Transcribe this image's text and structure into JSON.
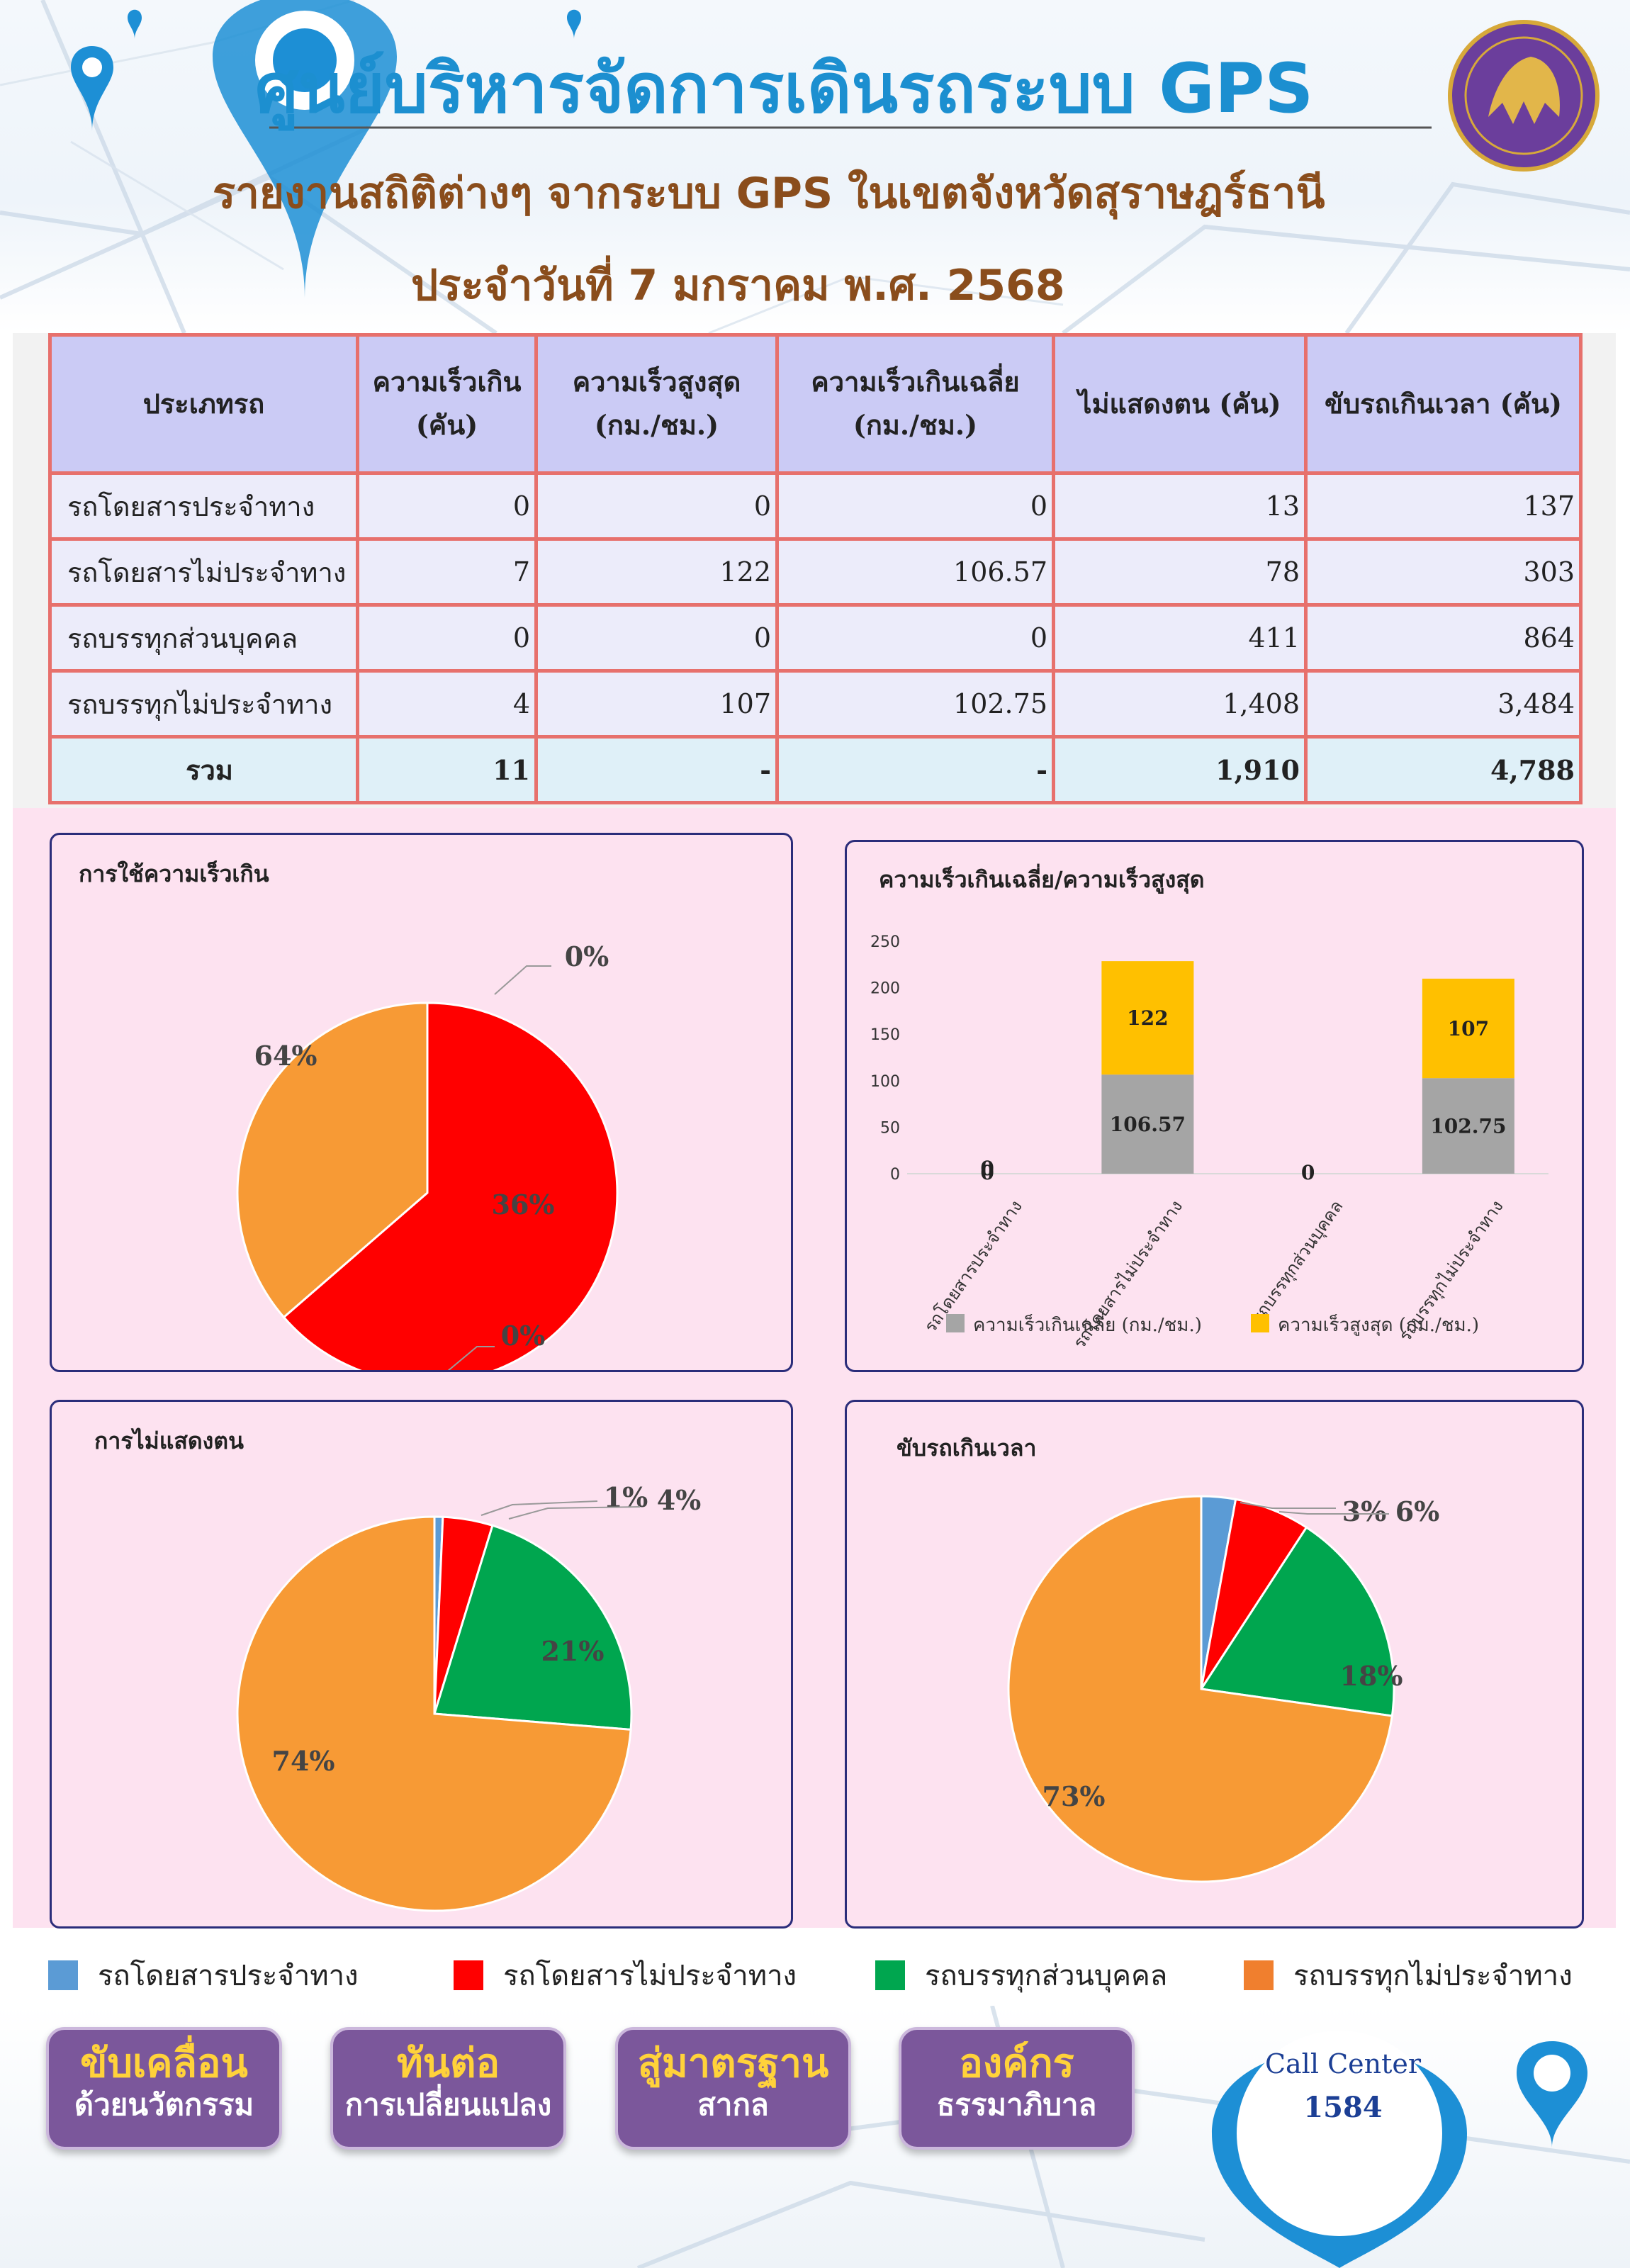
{
  "header": {
    "title": "ศูนย์บริหารจัดการเดินรถระบบ GPS",
    "subtitle": "รายงานสถิติต่างๆ จากระบบ GPS ในเขตจังหวัดสุราษฎร์ธานี",
    "date": "ประจำวันที่  7  มกราคม พ.ศ. 2568"
  },
  "table": {
    "headers": [
      "ประเภทรถ",
      "ความเร็วเกิน (คัน)",
      "ความเร็วสูงสุด (กม./ชม.)",
      "ความเร็วเกินเฉลี่ย (กม./ชม.)",
      "ไม่แสดงตน (คัน)",
      "ขับรถเกินเวลา (คัน)"
    ],
    "rows": [
      [
        "รถโดยสารประจำทาง",
        "0",
        "0",
        "0",
        "13",
        "137"
      ],
      [
        "รถโดยสารไม่ประจำทาง",
        "7",
        "122",
        "106.57",
        "78",
        "303"
      ],
      [
        "รถบรรทุกส่วนบุคคล",
        "0",
        "0",
        "0",
        "411",
        "864"
      ],
      [
        "รถบรรทุกไม่ประจำทาง",
        "4",
        "107",
        "102.75",
        "1,408",
        "3,484"
      ]
    ],
    "total": [
      "รวม",
      "11",
      "-",
      "-",
      "1,910",
      "4,788"
    ]
  },
  "colors": {
    "bus_fixed": "#5b9bd5",
    "bus_nonfixed": "#ff0000",
    "truck_private": "#00a64f",
    "truck_nonfixed": "#f79a35",
    "avg_speed": "#a5a5a5",
    "max_speed": "#ffc000"
  },
  "legend": {
    "bus_fixed": "รถโดยสารประจำทาง",
    "bus_nonfixed": "รถโดยสารไม่ประจำทาง",
    "truck_private": "รถบรรทุกส่วนบุคคล",
    "truck_nonfixed": "รถบรรทุกไม่ประจำทาง"
  },
  "chart_data": [
    {
      "type": "pie",
      "title": "การใช้ความเร็วเกิน",
      "categories": [
        "รถโดยสารประจำทาง",
        "รถโดยสารไม่ประจำทาง",
        "รถบรรทุกส่วนบุคคล",
        "รถบรรทุกไม่ประจำทาง"
      ],
      "values": [
        0,
        7,
        0,
        4
      ],
      "labels": [
        "0%",
        "64%",
        "0%",
        "36%"
      ]
    },
    {
      "type": "bar",
      "stacked": true,
      "title": "ความเร็วเกินเฉลี่ย/ความเร็วสูงสุด",
      "categories": [
        "รถโดยสารประจำทาง",
        "รถโดยสารไม่ประจำทาง",
        "รถบรรทุกส่วนบุคคล",
        "รถบรรทุกไม่ประจำทาง"
      ],
      "series": [
        {
          "name": "ความเร็วเกินเฉลี่ย (กม./ชม.)",
          "values": [
            0,
            106.57,
            0,
            102.75
          ]
        },
        {
          "name": "ความเร็วสูงสุด (กม./ชม.)",
          "values": [
            0,
            122,
            0,
            107
          ]
        }
      ],
      "ylim": [
        0,
        250
      ],
      "yticks": [
        "0",
        "50",
        "100",
        "150",
        "200",
        "250"
      ],
      "data_labels": {
        "avg": [
          "0",
          "106.57",
          "0",
          "102.75"
        ],
        "max": [
          "0",
          "122",
          "",
          "107"
        ]
      },
      "legend_position": "bottom"
    },
    {
      "type": "pie",
      "title": "การไม่แสดงตน",
      "categories": [
        "รถโดยสารประจำทาง",
        "รถโดยสารไม่ประจำทาง",
        "รถบรรทุกส่วนบุคคล",
        "รถบรรทุกไม่ประจำทาง"
      ],
      "values": [
        13,
        78,
        411,
        1408
      ],
      "labels": [
        "1%",
        "4%",
        "21%",
        "74%"
      ]
    },
    {
      "type": "pie",
      "title": "ขับรถเกินเวลา",
      "categories": [
        "รถโดยสารประจำทาง",
        "รถโดยสารไม่ประจำทาง",
        "รถบรรทุกส่วนบุคคล",
        "รถบรรทุกไม่ประจำทาง"
      ],
      "values": [
        137,
        303,
        864,
        3484
      ],
      "labels": [
        "3%",
        "6%",
        "18%",
        "73%"
      ]
    }
  ],
  "footer": {
    "buttons": [
      {
        "line1": "ขับเคลื่อน",
        "line2": "ด้วยนวัตกรรม"
      },
      {
        "line1": "ทันต่อ",
        "line2": "การเปลี่ยนแปลง"
      },
      {
        "line1": "สู่มาตรฐาน",
        "line2": "สากล"
      },
      {
        "line1": "องค์กร",
        "line2": "ธรรมาภิบาล"
      }
    ],
    "call_center_label": "Call Center",
    "call_center_number": "1584"
  }
}
